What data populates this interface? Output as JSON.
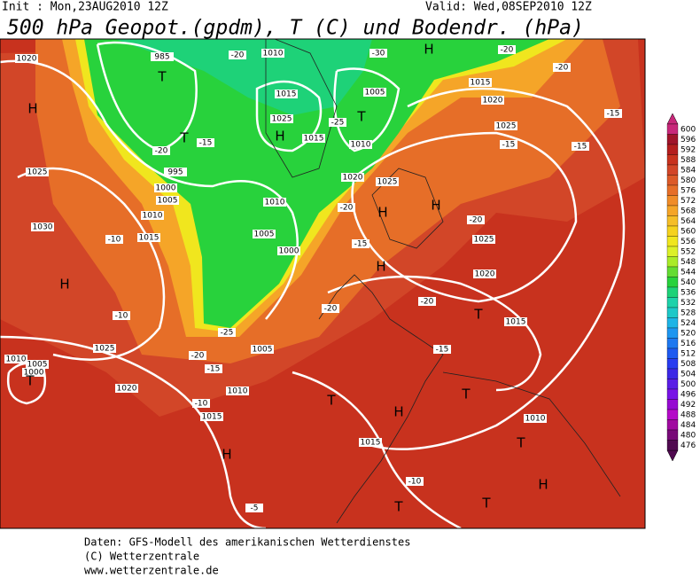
{
  "header": {
    "init": "Init : Mon,23AUG2010  12Z",
    "valid": "Valid: Wed,08SEP2010  12Z",
    "title": "500 hPa Geopot.(gpdm), T (C) und Bodendr. (hPa)"
  },
  "colorbar": {
    "levels": [
      600,
      596,
      592,
      588,
      584,
      580,
      576,
      572,
      568,
      564,
      560,
      556,
      552,
      548,
      544,
      540,
      536,
      532,
      528,
      524,
      520,
      516,
      512,
      508,
      504,
      500,
      496,
      492,
      488,
      484,
      480,
      476
    ],
    "colors": [
      "#c8287a",
      "#a0142a",
      "#b41e1e",
      "#c8321e",
      "#d24628",
      "#dc5a28",
      "#e66e28",
      "#f08c28",
      "#f5a528",
      "#f5be28",
      "#f5d21e",
      "#f0e61e",
      "#dcf028",
      "#aaeb28",
      "#64dc32",
      "#28d23c",
      "#1ed278",
      "#1ed2aa",
      "#1ec8c8",
      "#1eb4e6",
      "#1e96f0",
      "#1e78f0",
      "#1e5af0",
      "#283cf0",
      "#3c28e6",
      "#5a1ee6",
      "#7814e6",
      "#960ad2",
      "#b40ac8",
      "#a00aa0",
      "#780a78",
      "#500a50"
    ]
  },
  "pressure_labels": [
    "1020",
    "985",
    "1010",
    "1015",
    "1005",
    "1025",
    "1015",
    "1010",
    "995",
    "1000",
    "1005",
    "1010",
    "1015",
    "1020",
    "1025",
    "1025",
    "1030",
    "1010",
    "1005",
    "1000",
    "1015",
    "1020",
    "1025",
    "1025",
    "1020",
    "1015",
    "1025",
    "1005",
    "1010",
    "1005",
    "1000",
    "1020",
    "1010",
    "1015",
    "1010",
    "1015"
  ],
  "temperature_labels": [
    "-20",
    "-30",
    "-20",
    "-20",
    "-15",
    "-25",
    "-15",
    "-20",
    "-15",
    "-15",
    "-20",
    "-20",
    "-15",
    "-10",
    "-10",
    "-20",
    "-15",
    "-25",
    "-20",
    "-15",
    "-10",
    "-10",
    "-5",
    "-20"
  ],
  "pressure_centers": [
    "H",
    "H",
    "T",
    "T",
    "T",
    "T",
    "H",
    "H",
    "H",
    "H",
    "T",
    "T",
    "H",
    "T",
    "H",
    "T",
    "H",
    "T",
    "T",
    "H"
  ],
  "footer": [
    "Daten: GFS-Modell des amerikanischen Wetterdienstes",
    "(C) Wetterzentrale",
    "www.wetterzentrale.de"
  ]
}
